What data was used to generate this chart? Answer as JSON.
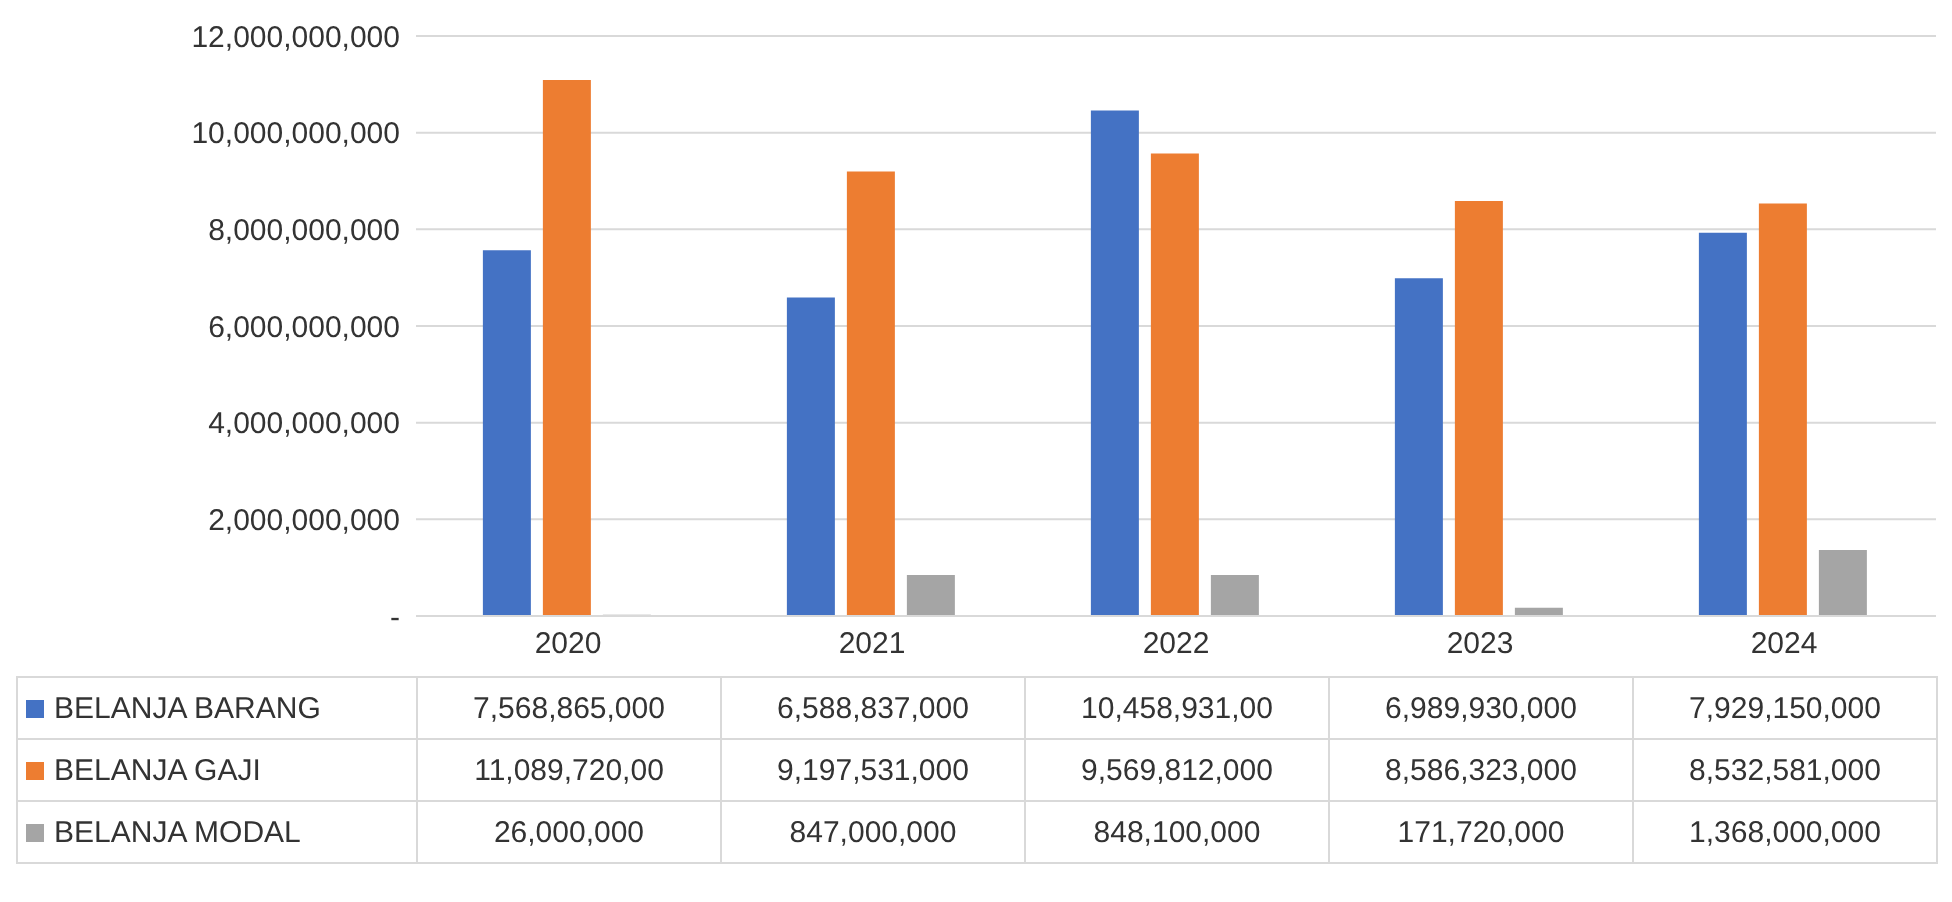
{
  "chart_data": {
    "type": "bar",
    "categories": [
      "2020",
      "2021",
      "2022",
      "2023",
      "2024"
    ],
    "series": [
      {
        "name": "BELANJA BARANG",
        "color": "#4472c4",
        "values": [
          7568865000,
          6588837000,
          10458931000,
          6989930000,
          7929150000
        ],
        "value_labels": [
          "7,568,865,000",
          "6,588,837,000",
          "10,458,931,00",
          "6,989,930,000",
          "7,929,150,000"
        ]
      },
      {
        "name": "BELANJA GAJI",
        "color": "#ed7d31",
        "values": [
          11089720000,
          9197531000,
          9569812000,
          8586323000,
          8532581000
        ],
        "value_labels": [
          "11,089,720,00",
          "9,197,531,000",
          "9,569,812,000",
          "8,586,323,000",
          "8,532,581,000"
        ]
      },
      {
        "name": "BELANJA MODAL",
        "color": "#a5a5a5",
        "values": [
          26000000,
          847000000,
          848100000,
          171720000,
          1368000000
        ],
        "value_labels": [
          "26,000,000",
          "847,000,000",
          "848,100,000",
          "171,720,000",
          "1,368,000,000"
        ]
      }
    ],
    "ylim": [
      0,
      12000000000
    ],
    "yticks": [
      {
        "value": 0,
        "label": "-"
      },
      {
        "value": 2000000000,
        "label": "2,000,000,000"
      },
      {
        "value": 4000000000,
        "label": "4,000,000,000"
      },
      {
        "value": 6000000000,
        "label": "6,000,000,000"
      },
      {
        "value": 8000000000,
        "label": "8,000,000,000"
      },
      {
        "value": 10000000000,
        "label": "10,000,000,000"
      },
      {
        "value": 12000000000,
        "label": "12,000,000,000"
      }
    ],
    "grid": "y",
    "legend": "bottom"
  }
}
